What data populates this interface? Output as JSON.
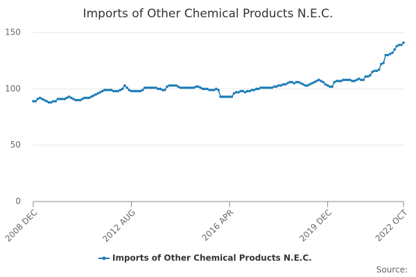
{
  "chart_data": {
    "type": "line",
    "title": "Imports of Other Chemical Products N.E.C.",
    "categories": [
      "2008 DEC",
      null,
      null,
      null,
      null,
      null,
      null,
      null,
      null,
      null,
      null,
      null,
      null,
      null,
      null,
      null,
      null,
      null,
      null,
      null,
      null,
      null,
      null,
      null,
      null,
      null,
      null,
      null,
      null,
      null,
      null,
      null,
      null,
      null,
      null,
      null,
      null,
      null,
      null,
      null,
      null,
      null,
      null,
      null,
      "2012 AUG",
      null,
      null,
      null,
      null,
      null,
      null,
      null,
      null,
      null,
      null,
      null,
      null,
      null,
      null,
      null,
      null,
      null,
      null,
      null,
      null,
      null,
      null,
      null,
      null,
      null,
      null,
      null,
      null,
      null,
      null,
      null,
      null,
      null,
      null,
      null,
      null,
      null,
      null,
      null,
      null,
      null,
      null,
      null,
      "2016 APR",
      null,
      null,
      null,
      null,
      null,
      null,
      null,
      null,
      null,
      null,
      null,
      null,
      null,
      null,
      null,
      null,
      null,
      null,
      null,
      null,
      null,
      null,
      null,
      null,
      null,
      null,
      null,
      null,
      null,
      null,
      null,
      null,
      null,
      null,
      null,
      null,
      null,
      null,
      null,
      null,
      null,
      null,
      null,
      "2019 DEC",
      null,
      null,
      null,
      null,
      null,
      null,
      null,
      null,
      null,
      null,
      null,
      null,
      null,
      null,
      null,
      null,
      null,
      null,
      null,
      null,
      null,
      null,
      null,
      null,
      null,
      null,
      null,
      null,
      null,
      null,
      null,
      null,
      null,
      "2022 OCT"
    ],
    "series": [
      {
        "name": "Imports of Other Chemical Products N.E.C.",
        "color": "#1a7ab6",
        "values": [
          89,
          89,
          91,
          92,
          91,
          90,
          89,
          88,
          88,
          89,
          89,
          91,
          91,
          91,
          91,
          92,
          93,
          92,
          91,
          90,
          90,
          90,
          91,
          92,
          92,
          92,
          93,
          94,
          95,
          96,
          97,
          98,
          99,
          99,
          99,
          99,
          98,
          98,
          98,
          99,
          100,
          103,
          101,
          99,
          98,
          98,
          98,
          98,
          98,
          99,
          101,
          101,
          101,
          101,
          101,
          101,
          100,
          100,
          99,
          99,
          102,
          103,
          103,
          103,
          103,
          102,
          101,
          101,
          101,
          101,
          101,
          101,
          101,
          102,
          102,
          101,
          100,
          100,
          100,
          99,
          99,
          99,
          100,
          99,
          93,
          93,
          93,
          93,
          93,
          93,
          96,
          97,
          97,
          98,
          98,
          97,
          98,
          98,
          99,
          99,
          100,
          100,
          101,
          101,
          101,
          101,
          101,
          101,
          102,
          102,
          103,
          103,
          104,
          104,
          105,
          106,
          106,
          105,
          106,
          106,
          105,
          104,
          103,
          103,
          104,
          105,
          106,
          107,
          108,
          107,
          106,
          104,
          103,
          102,
          102,
          106,
          107,
          107,
          107,
          108,
          108,
          108,
          108,
          107,
          107,
          108,
          109,
          108,
          108,
          111,
          111,
          112,
          115,
          116,
          116,
          117,
          122,
          123,
          130,
          130,
          131,
          132,
          135,
          138,
          139,
          139,
          141
        ]
      }
    ],
    "ylim": [
      0,
      150
    ],
    "yticks": [
      0,
      50,
      100,
      150
    ],
    "grid": true,
    "legend": "bottom",
    "source": "Source:"
  }
}
